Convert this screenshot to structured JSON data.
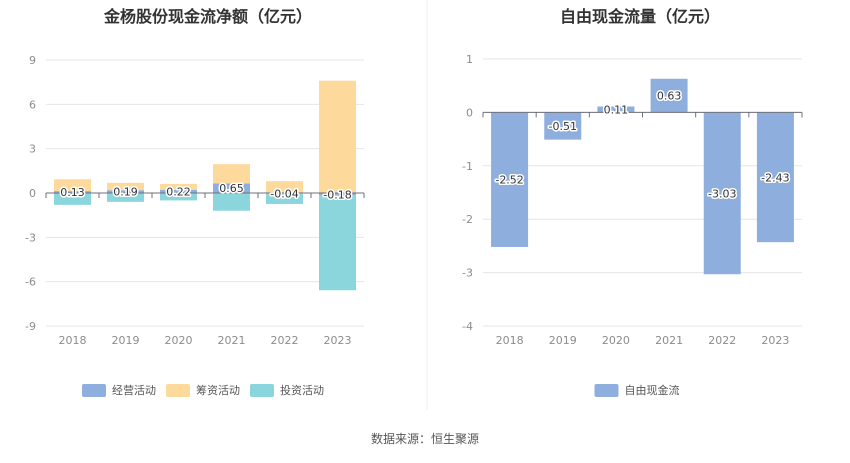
{
  "source_note": "数据来源：恒生聚源",
  "chart_data": [
    {
      "type": "bar",
      "stacked": true,
      "title": "金杨股份现金流净额（亿元）",
      "categories": [
        "2018",
        "2019",
        "2020",
        "2021",
        "2022",
        "2023"
      ],
      "ylim": [
        -9,
        9
      ],
      "yticks": [
        9,
        6,
        3,
        0,
        -3,
        -6,
        -9
      ],
      "grid": true,
      "legend_position": "bottom",
      "series": [
        {
          "name": "经营活动",
          "color": "#8eaedd",
          "values": [
            0.13,
            0.19,
            0.22,
            0.65,
            -0.04,
            -0.18
          ]
        },
        {
          "name": "筹资活动",
          "color": "#fdd99c",
          "values": [
            0.8,
            0.5,
            0.4,
            1.3,
            0.8,
            7.6
          ]
        },
        {
          "name": "投资活动",
          "color": "#8ad6dc",
          "values": [
            -0.8,
            -0.6,
            -0.5,
            -1.2,
            -0.7,
            -6.4
          ]
        }
      ],
      "data_labels": [
        "0.13",
        "0.19",
        "0.22",
        "0.65",
        "-0.04",
        "-0.18"
      ]
    },
    {
      "type": "bar",
      "title": "自由现金流量（亿元）",
      "categories": [
        "2018",
        "2019",
        "2020",
        "2021",
        "2022",
        "2023"
      ],
      "ylim": [
        -4,
        1
      ],
      "yticks": [
        1,
        0,
        -1,
        -2,
        -3,
        -4
      ],
      "grid": true,
      "legend_position": "bottom",
      "series": [
        {
          "name": "自由现金流",
          "color": "#8eaedd",
          "values": [
            -2.52,
            -0.51,
            0.11,
            0.63,
            -3.03,
            -2.43
          ]
        }
      ],
      "data_labels": [
        "-2.52",
        "-0.51",
        "0.11",
        "0.63",
        "-3.03",
        "-2.43"
      ]
    }
  ]
}
